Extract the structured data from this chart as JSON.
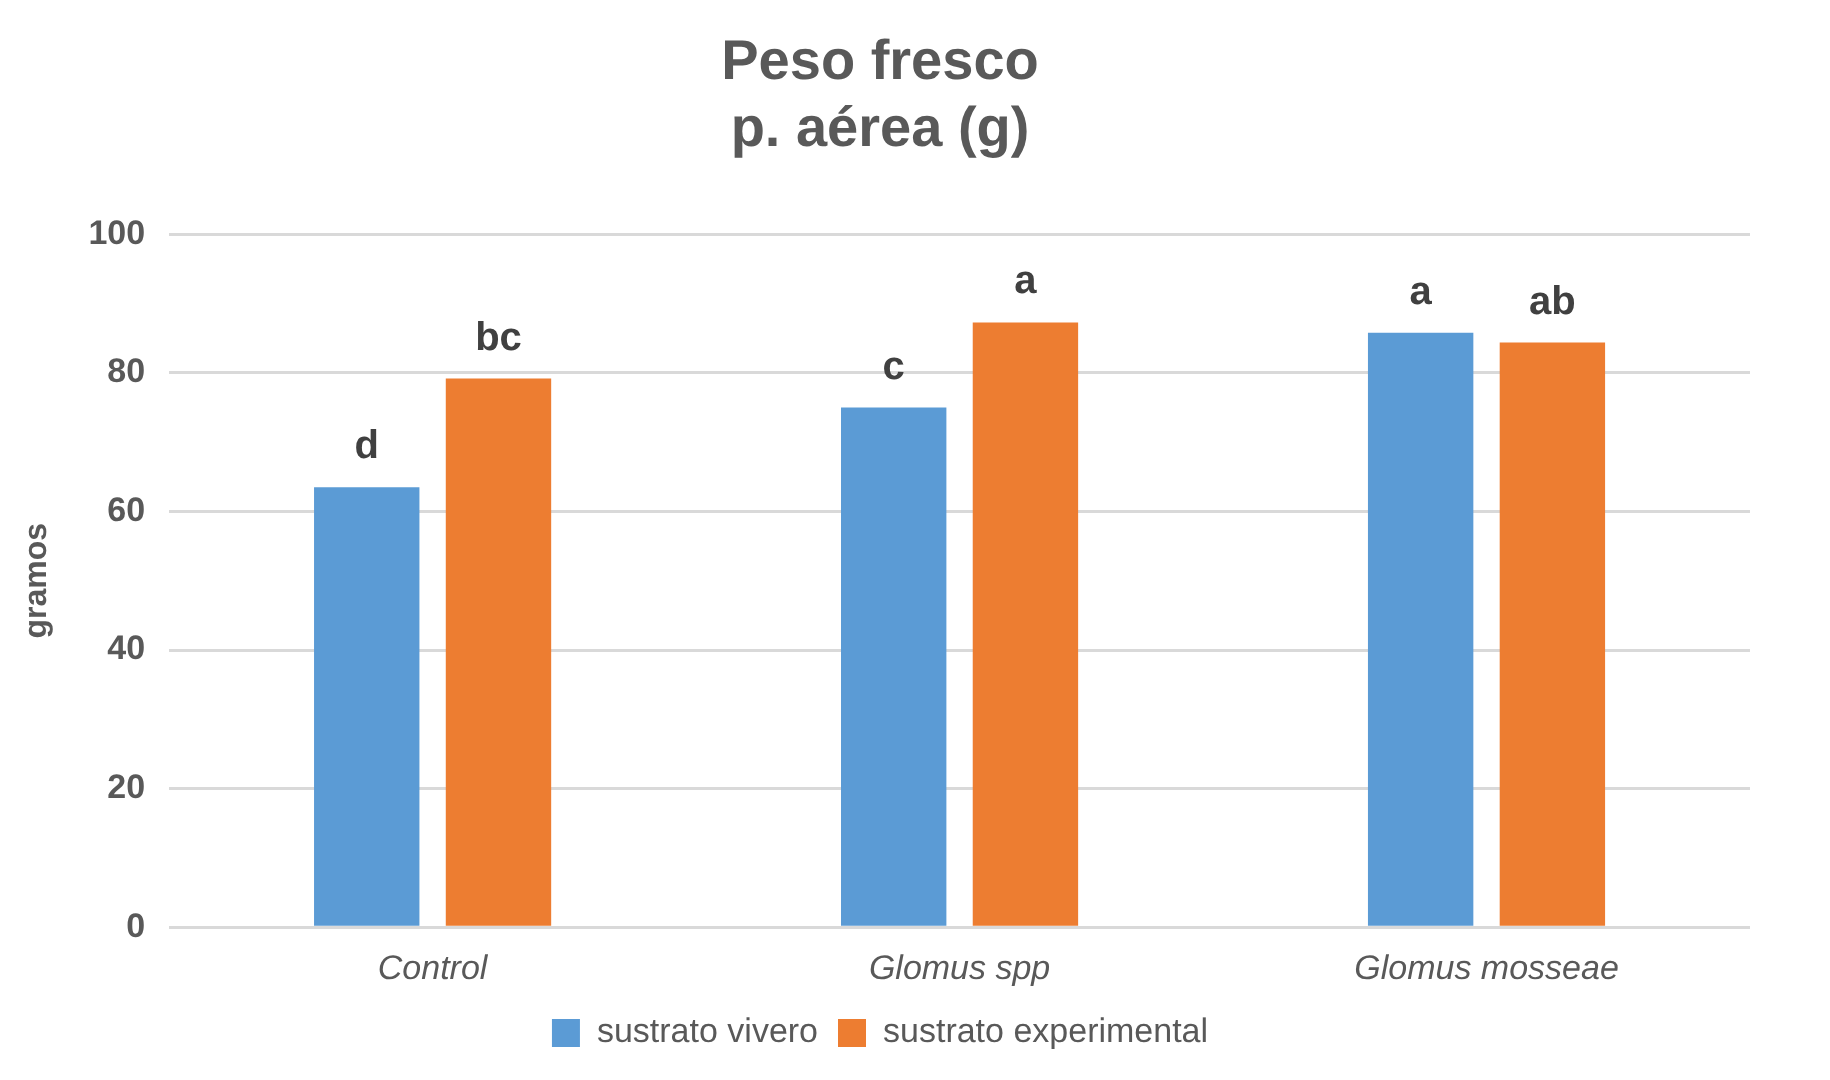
{
  "chart_data": {
    "type": "bar",
    "title": "Peso fresco\np. aérea (g)",
    "ylabel": "gramos",
    "categories": [
      "Control",
      "Glomus spp",
      "Glomus mosseae"
    ],
    "series": [
      {
        "name": "sustrato vivero",
        "color": "#5b9bd5",
        "values": [
          63.5,
          75,
          85.8
        ],
        "value_labels": [
          "d",
          "c",
          "a"
        ]
      },
      {
        "name": "sustrato experimental",
        "color": "#ed7d31",
        "values": [
          79.2,
          87.3,
          84.4
        ],
        "value_labels": [
          "bc",
          "a",
          "ab"
        ]
      }
    ],
    "ylim": [
      0,
      100
    ],
    "yticks": [
      0,
      20,
      40,
      60,
      80,
      100
    ],
    "grid": "y",
    "legend": "bottom"
  }
}
